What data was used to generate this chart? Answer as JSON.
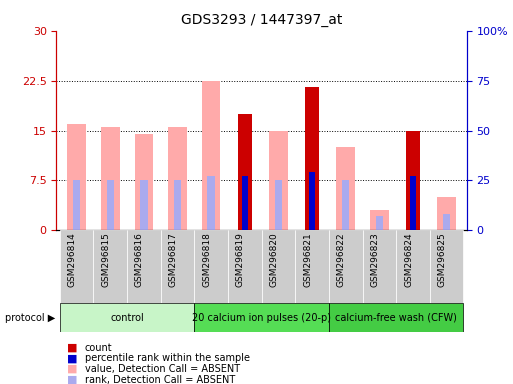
{
  "title": "GDS3293 / 1447397_at",
  "samples": [
    "GSM296814",
    "GSM296815",
    "GSM296816",
    "GSM296817",
    "GSM296818",
    "GSM296819",
    "GSM296820",
    "GSM296821",
    "GSM296822",
    "GSM296823",
    "GSM296824",
    "GSM296825"
  ],
  "count": [
    0,
    0,
    0,
    0,
    0,
    17.5,
    0,
    21.5,
    0,
    0,
    15.0,
    0
  ],
  "pct_rank": [
    0,
    0,
    0,
    0,
    0,
    27,
    0,
    29,
    0,
    0,
    27,
    0
  ],
  "value_absent": [
    16.0,
    15.5,
    14.5,
    15.5,
    22.5,
    0,
    15.0,
    0,
    12.5,
    3.0,
    0,
    5.0
  ],
  "rank_absent": [
    25,
    25,
    25,
    25,
    27,
    0,
    25,
    0,
    25,
    7,
    0,
    8
  ],
  "absent_samples": [
    true,
    true,
    true,
    true,
    true,
    false,
    true,
    false,
    true,
    true,
    false,
    true
  ],
  "protocol_labels": [
    "control",
    "20 calcium ion pulses (20-p)",
    "calcium-free wash (CFW)"
  ],
  "protocol_ranges": [
    [
      0,
      4
    ],
    [
      4,
      8
    ],
    [
      8,
      12
    ]
  ],
  "protocol_colors": [
    "#c8f5c8",
    "#55dd55",
    "#44cc44"
  ],
  "left_ylim": [
    0,
    30
  ],
  "right_ylim": [
    0,
    100
  ],
  "left_yticks": [
    0,
    7.5,
    15,
    22.5,
    30
  ],
  "right_yticks": [
    0,
    25,
    50,
    75,
    100
  ],
  "left_ytick_labels": [
    "0",
    "7.5",
    "15",
    "22.5",
    "30"
  ],
  "right_ytick_labels": [
    "0",
    "25",
    "50",
    "75",
    "100%"
  ],
  "color_count": "#cc0000",
  "color_pct_rank": "#0000cc",
  "color_value_absent": "#ffaaaa",
  "color_rank_absent": "#aaaaee",
  "bg_color_xtick": "#cccccc"
}
